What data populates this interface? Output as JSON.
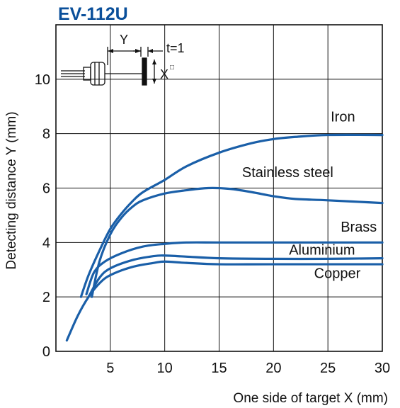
{
  "chart_data": {
    "type": "line",
    "title": "EV-112U",
    "xlabel": "One side of target X (mm)",
    "ylabel": "Detecting distance Y (mm)",
    "xlim": [
      0,
      30
    ],
    "ylim": [
      0,
      12
    ],
    "x_ticks": [
      "5",
      "10",
      "15",
      "20",
      "25",
      "30"
    ],
    "y_ticks": [
      "0",
      "2",
      "4",
      "6",
      "8",
      "10"
    ],
    "grid": true,
    "line_color": "#1a5fa8",
    "series": [
      {
        "name": "Iron",
        "points": [
          [
            2.3,
            2.0
          ],
          [
            3,
            2.8
          ],
          [
            4,
            3.7
          ],
          [
            5,
            4.5
          ],
          [
            6,
            5.05
          ],
          [
            7,
            5.5
          ],
          [
            8,
            5.85
          ],
          [
            10,
            6.3
          ],
          [
            12,
            6.8
          ],
          [
            15,
            7.3
          ],
          [
            18,
            7.65
          ],
          [
            20,
            7.8
          ],
          [
            22,
            7.88
          ],
          [
            25,
            7.95
          ],
          [
            30,
            7.95
          ]
        ]
      },
      {
        "name": "Stainless steel",
        "points": [
          [
            3.3,
            2.0
          ],
          [
            4,
            3.3
          ],
          [
            5,
            4.3
          ],
          [
            6,
            4.9
          ],
          [
            7,
            5.3
          ],
          [
            8,
            5.55
          ],
          [
            10,
            5.8
          ],
          [
            12,
            5.92
          ],
          [
            14,
            6.0
          ],
          [
            16,
            5.97
          ],
          [
            18,
            5.85
          ],
          [
            20,
            5.7
          ],
          [
            22,
            5.6
          ],
          [
            25,
            5.55
          ],
          [
            30,
            5.45
          ]
        ]
      },
      {
        "name": "Brass",
        "points": [
          [
            2.8,
            2.1
          ],
          [
            3.5,
            2.9
          ],
          [
            4.5,
            3.3
          ],
          [
            6,
            3.6
          ],
          [
            8,
            3.85
          ],
          [
            10,
            3.95
          ],
          [
            12,
            4.0
          ],
          [
            15,
            4.0
          ],
          [
            20,
            4.0
          ],
          [
            30,
            4.0
          ]
        ]
      },
      {
        "name": "Aluminium",
        "points": [
          [
            3.0,
            2.0
          ],
          [
            4,
            2.7
          ],
          [
            5,
            3.05
          ],
          [
            7,
            3.35
          ],
          [
            9,
            3.5
          ],
          [
            10,
            3.52
          ],
          [
            12,
            3.48
          ],
          [
            15,
            3.42
          ],
          [
            20,
            3.4
          ],
          [
            25,
            3.4
          ],
          [
            30,
            3.42
          ]
        ]
      },
      {
        "name": "Copper",
        "points": [
          [
            1.0,
            0.4
          ],
          [
            2,
            1.3
          ],
          [
            3,
            2.0
          ],
          [
            4,
            2.5
          ],
          [
            5,
            2.8
          ],
          [
            7,
            3.1
          ],
          [
            9,
            3.25
          ],
          [
            10,
            3.3
          ],
          [
            12,
            3.25
          ],
          [
            15,
            3.2
          ],
          [
            20,
            3.2
          ],
          [
            30,
            3.2
          ]
        ]
      }
    ],
    "curve_labels": [
      {
        "text": "Iron",
        "x": 27.5,
        "y": 8.45
      },
      {
        "text": "Stainless steel",
        "x": 25.5,
        "y": 6.4
      },
      {
        "text": "Brass",
        "x": 29.5,
        "y": 4.4
      },
      {
        "text": "Aluminium",
        "x": 27.5,
        "y": 3.55
      },
      {
        "text": "Copper",
        "x": 28,
        "y": 2.7
      }
    ],
    "inset": {
      "y_label": "Y",
      "t_label": "t=1",
      "x_label": "X",
      "x_superscript": "□"
    }
  }
}
